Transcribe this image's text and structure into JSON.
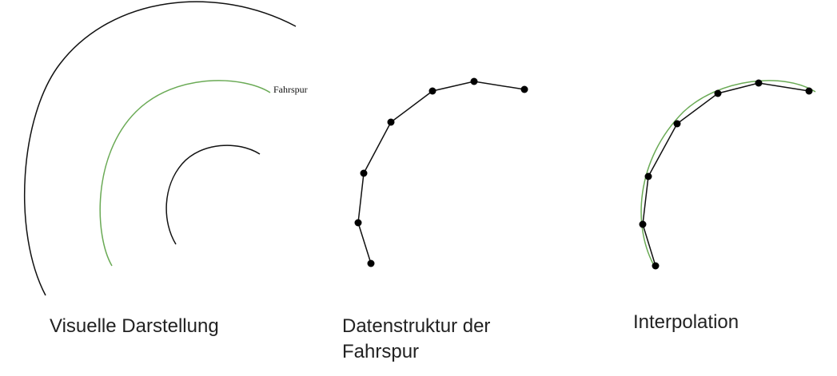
{
  "labels": {
    "lane": "Fahrspur"
  },
  "captions": {
    "visual": "Visuelle Darstellung",
    "data_line1": "Datenstruktur der",
    "data_line2": "Fahrspur",
    "interpolation": "Interpolation"
  },
  "colors": {
    "lane_line": "#6aaa55",
    "edge_line": "#111111",
    "point": "#000000"
  }
}
